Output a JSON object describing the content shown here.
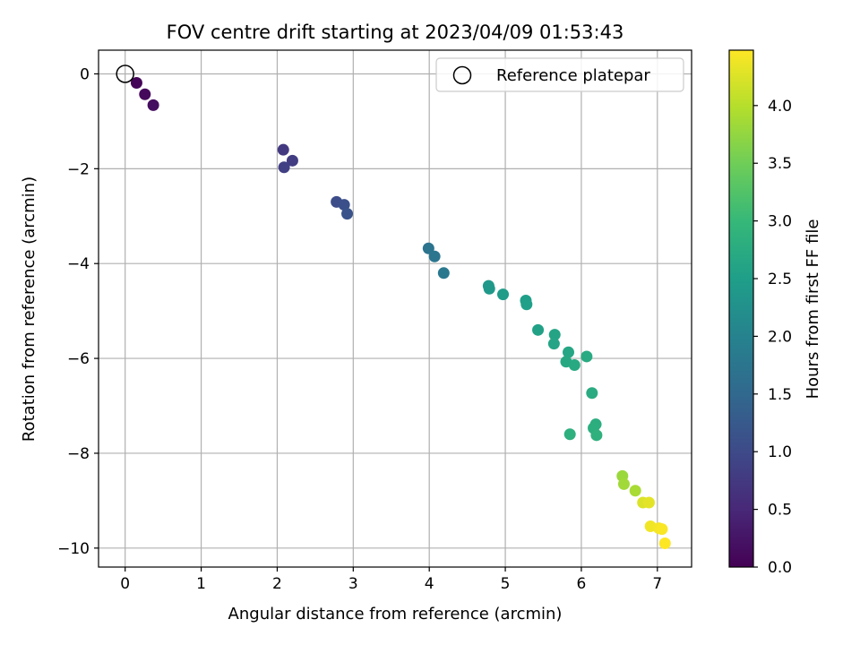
{
  "chart_data": {
    "type": "scatter",
    "title": "FOV centre drift starting at 2023/04/09 01:53:43",
    "xlabel": "Angular distance from reference (arcmin)",
    "ylabel": "Rotation from reference (arcmin)",
    "xlim": [
      -0.35,
      7.45
    ],
    "ylim": [
      -10.4,
      0.5
    ],
    "x_ticks": [
      0,
      1,
      2,
      3,
      4,
      5,
      6,
      7
    ],
    "y_ticks": [
      0,
      -2,
      -4,
      -6,
      -8,
      -10
    ],
    "x_tick_labels": [
      "0",
      "1",
      "2",
      "3",
      "4",
      "5",
      "6",
      "7"
    ],
    "y_tick_labels": [
      "0",
      "−2",
      "−4",
      "−6",
      "−8",
      "−10"
    ],
    "grid": true,
    "legend": {
      "placement": "top-right",
      "entries": [
        "Reference platepar"
      ]
    },
    "reference_point": {
      "x": 0,
      "y": 0,
      "label": "Reference platepar"
    },
    "colorbar": {
      "label": "Hours from first FF file",
      "colormap": "viridis",
      "range": [
        0.0,
        4.48
      ],
      "ticks": [
        0.0,
        0.5,
        1.0,
        1.5,
        2.0,
        2.5,
        3.0,
        3.5,
        4.0
      ],
      "tick_labels": [
        "0.0",
        "0.5",
        "1.0",
        "1.5",
        "2.0",
        "2.5",
        "3.0",
        "3.5",
        "4.0"
      ]
    },
    "series": [
      {
        "points": [
          {
            "x": 0.15,
            "y": -0.19,
            "c": 0.05
          },
          {
            "x": 0.26,
            "y": -0.43,
            "c": 0.1
          },
          {
            "x": 0.37,
            "y": -0.66,
            "c": 0.15
          },
          {
            "x": 2.08,
            "y": -1.6,
            "c": 0.75
          },
          {
            "x": 2.2,
            "y": -1.83,
            "c": 0.8
          },
          {
            "x": 2.09,
            "y": -1.97,
            "c": 0.85
          },
          {
            "x": 2.78,
            "y": -2.7,
            "c": 1.05
          },
          {
            "x": 2.88,
            "y": -2.76,
            "c": 1.1
          },
          {
            "x": 2.92,
            "y": -2.95,
            "c": 1.15
          },
          {
            "x": 3.99,
            "y": -3.68,
            "c": 1.7
          },
          {
            "x": 4.07,
            "y": -3.85,
            "c": 1.75
          },
          {
            "x": 4.19,
            "y": -4.2,
            "c": 1.8
          },
          {
            "x": 4.78,
            "y": -4.47,
            "c": 2.4
          },
          {
            "x": 4.79,
            "y": -4.53,
            "c": 2.4
          },
          {
            "x": 4.97,
            "y": -4.65,
            "c": 2.45
          },
          {
            "x": 5.27,
            "y": -4.78,
            "c": 2.5
          },
          {
            "x": 5.28,
            "y": -4.86,
            "c": 2.52
          },
          {
            "x": 5.43,
            "y": -5.4,
            "c": 2.55
          },
          {
            "x": 5.65,
            "y": -5.5,
            "c": 2.6
          },
          {
            "x": 5.64,
            "y": -5.69,
            "c": 2.62
          },
          {
            "x": 5.83,
            "y": -5.87,
            "c": 2.65
          },
          {
            "x": 5.8,
            "y": -6.07,
            "c": 2.68
          },
          {
            "x": 5.91,
            "y": -6.14,
            "c": 2.7
          },
          {
            "x": 6.07,
            "y": -5.96,
            "c": 2.72
          },
          {
            "x": 6.14,
            "y": -6.73,
            "c": 2.75
          },
          {
            "x": 6.19,
            "y": -7.39,
            "c": 2.78
          },
          {
            "x": 6.16,
            "y": -7.47,
            "c": 2.8
          },
          {
            "x": 5.85,
            "y": -7.6,
            "c": 2.82
          },
          {
            "x": 6.2,
            "y": -7.62,
            "c": 2.85
          },
          {
            "x": 6.54,
            "y": -8.48,
            "c": 3.8
          },
          {
            "x": 6.56,
            "y": -8.65,
            "c": 3.85
          },
          {
            "x": 6.71,
            "y": -8.79,
            "c": 3.9
          },
          {
            "x": 6.81,
            "y": -9.04,
            "c": 4.25
          },
          {
            "x": 6.89,
            "y": -9.04,
            "c": 4.3
          },
          {
            "x": 6.91,
            "y": -9.54,
            "c": 4.4
          },
          {
            "x": 7.02,
            "y": -9.58,
            "c": 4.42
          },
          {
            "x": 7.06,
            "y": -9.6,
            "c": 4.45
          },
          {
            "x": 7.1,
            "y": -9.9,
            "c": 4.48
          }
        ]
      }
    ]
  }
}
